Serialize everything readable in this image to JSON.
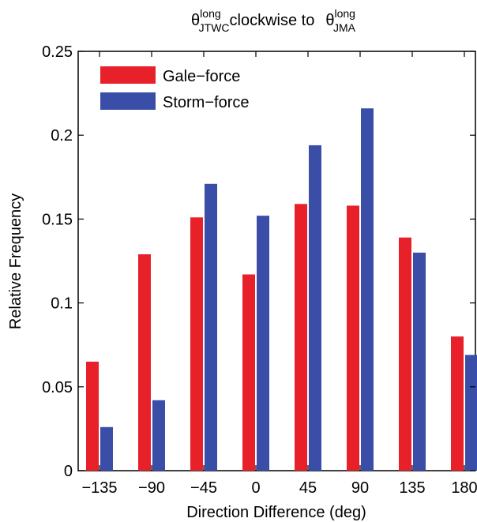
{
  "chart_data": {
    "type": "bar",
    "title": {
      "theta1": "θ",
      "sup1": "long",
      "sub1": "JTWC",
      "middle": "clockwise to",
      "theta2": "θ",
      "sup2": "long",
      "sub2": "JMA"
    },
    "xlabel": "Direction Difference (deg)",
    "ylabel": "Relative Frequency",
    "categories": [
      "−135",
      "−90",
      "−45",
      "0",
      "45",
      "90",
      "135",
      "180"
    ],
    "ylim": [
      0,
      0.25
    ],
    "yticks": [
      0,
      0.05,
      0.1,
      0.15,
      0.2,
      0.25
    ],
    "ytick_labels": [
      "0",
      "0.05",
      "0.1",
      "0.15",
      "0.2",
      "0.25"
    ],
    "series": [
      {
        "name": "Gale−force",
        "color": "#e8202a",
        "values": [
          0.065,
          0.129,
          0.151,
          0.117,
          0.159,
          0.158,
          0.139,
          0.08
        ]
      },
      {
        "name": "Storm−force",
        "color": "#3a4ea8",
        "values": [
          0.026,
          0.042,
          0.171,
          0.152,
          0.194,
          0.216,
          0.13,
          0.069
        ]
      }
    ],
    "legend_position": "top-left",
    "grid": false
  }
}
